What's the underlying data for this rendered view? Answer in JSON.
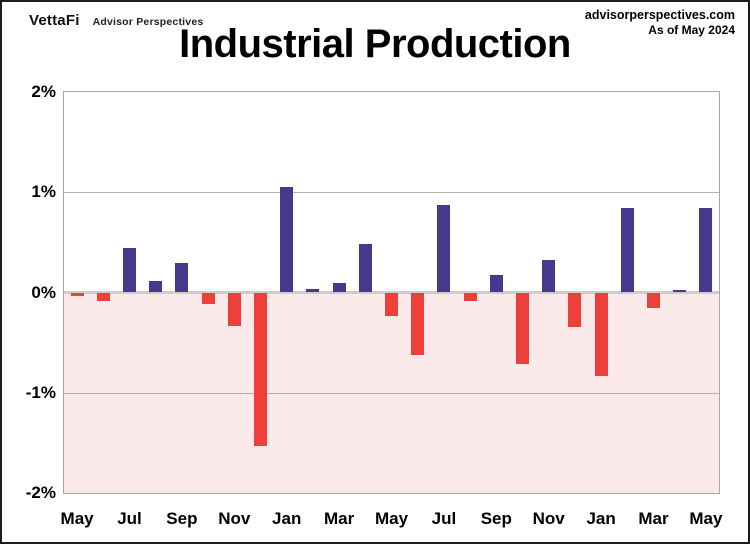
{
  "header": {
    "logo": "VettaFi",
    "logo_sub": "Advisor Perspectives",
    "site": "advisorperspectives.com",
    "as_of": "As of May 2024"
  },
  "chart_data": {
    "type": "bar",
    "title": "Industrial Production",
    "x": [
      "May 2022",
      "Jun 2022",
      "Jul 2022",
      "Aug 2022",
      "Sep 2022",
      "Oct 2022",
      "Nov 2022",
      "Dec 2022",
      "Jan 2023",
      "Feb 2023",
      "Mar 2023",
      "Apr 2023",
      "May 2023",
      "Jun 2023",
      "Jul 2023",
      "Aug 2023",
      "Sep 2023",
      "Oct 2023",
      "Nov 2023",
      "Dec 2023",
      "Jan 2024",
      "Feb 2024",
      "Mar 2024",
      "Apr 2024",
      "May 2024"
    ],
    "values": [
      -0.03,
      -0.08,
      0.44,
      0.11,
      0.29,
      -0.11,
      -0.33,
      -1.53,
      1.05,
      0.03,
      0.09,
      0.48,
      -0.23,
      -0.62,
      0.87,
      -0.08,
      0.17,
      -0.71,
      0.32,
      -0.34,
      -0.83,
      0.84,
      -0.15,
      0.02,
      0.84
    ],
    "units": "percent month-over-month",
    "xlabel": "",
    "ylabel": "",
    "ylim": [
      -2,
      2
    ],
    "y_ticks": [
      2,
      1,
      0,
      -1,
      -2
    ],
    "y_tick_labels": [
      "2%",
      "1%",
      "0%",
      "-1%",
      "-2%"
    ],
    "x_tick_labels": [
      "May",
      "Jul",
      "Sep",
      "Nov",
      "Jan",
      "Mar",
      "May",
      "Jul",
      "Sep",
      "Nov",
      "Jan",
      "Mar",
      "May"
    ],
    "x_tick_every": 2,
    "grid": true,
    "legend": false,
    "colors": {
      "positive_bar": "#44398C",
      "negative_bar": "#EE403B",
      "negative_region_bg": "#FCE9EA",
      "gridline": "#B3B3B3",
      "zero_line": "#CDCDCD",
      "plot_border": "#A8A8A8"
    }
  }
}
